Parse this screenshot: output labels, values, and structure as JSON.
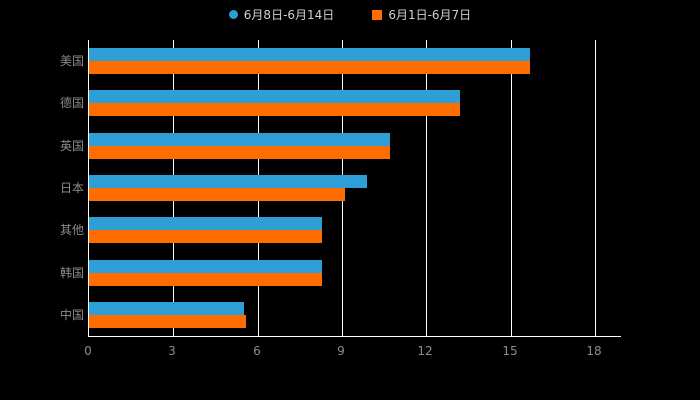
{
  "chart_data": {
    "type": "bar",
    "orientation": "horizontal",
    "title": "",
    "categories": [
      "美国",
      "德国",
      "英国",
      "日本",
      "其他",
      "韩国",
      "中国"
    ],
    "series": [
      {
        "name": "6月8日-6月14日",
        "color": "#2E9FD6",
        "marker": "circle",
        "values": [
          15.7,
          13.2,
          10.7,
          9.9,
          8.3,
          8.3,
          5.5
        ]
      },
      {
        "name": "6月1日-6月7日",
        "color": "#FF6D00",
        "marker": "square",
        "values": [
          15.7,
          13.2,
          10.7,
          9.1,
          8.3,
          8.3,
          5.6
        ]
      }
    ],
    "xlim": [
      0,
      18
    ],
    "xticks": [
      0,
      3,
      6,
      9,
      12,
      15,
      18
    ],
    "grid": true,
    "legend_position": "top",
    "background_color": "#000000",
    "axis_color": "#ffffff",
    "tick_label_color": "#8c8c8c"
  }
}
